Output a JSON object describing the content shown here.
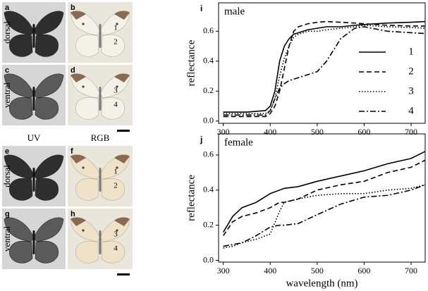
{
  "photo_panels": {
    "column_labels": [
      "UV",
      "RGB"
    ],
    "row_labels": [
      "dorsal",
      "ventral",
      "dorsal",
      "ventral"
    ],
    "panels": [
      {
        "label": "a",
        "mode": "uv",
        "numbers": []
      },
      {
        "label": "b",
        "mode": "rgb",
        "numbers": [
          "1",
          "2"
        ]
      },
      {
        "label": "c",
        "mode": "uv",
        "numbers": []
      },
      {
        "label": "d",
        "mode": "rgb",
        "numbers": [
          "3",
          "4"
        ],
        "scale_bar": true
      },
      {
        "label": "e",
        "mode": "uv",
        "numbers": []
      },
      {
        "label": "f",
        "mode": "rgb",
        "numbers": [
          "1",
          "2"
        ]
      },
      {
        "label": "g",
        "mode": "uv",
        "numbers": []
      },
      {
        "label": "h",
        "mode": "rgb",
        "numbers": [
          "3",
          "4"
        ],
        "scale_bar": true
      }
    ]
  },
  "chart_data": [
    {
      "type": "line",
      "panel_label": "i",
      "annotation": "male",
      "y_label": "reflectance",
      "x": [
        300,
        350,
        390,
        400,
        410,
        420,
        430,
        440,
        450,
        460,
        480,
        500,
        520,
        550,
        580,
        600,
        650,
        700,
        730
      ],
      "series": [
        {
          "name": "1",
          "color": "#000000",
          "line_style": "solid",
          "values": [
            0.06,
            0.06,
            0.07,
            0.1,
            0.2,
            0.4,
            0.5,
            0.55,
            0.58,
            0.59,
            0.61,
            0.62,
            0.63,
            0.63,
            0.64,
            0.645,
            0.655,
            0.66,
            0.665
          ]
        },
        {
          "name": "2",
          "color": "#000000",
          "line_style": "dashed",
          "values": [
            0.03,
            0.03,
            0.03,
            0.05,
            0.1,
            0.2,
            0.35,
            0.5,
            0.6,
            0.63,
            0.65,
            0.66,
            0.665,
            0.66,
            0.655,
            0.65,
            0.64,
            0.635,
            0.635
          ]
        },
        {
          "name": "3",
          "color": "#000000",
          "line_style": "dotted",
          "values": [
            0.05,
            0.05,
            0.05,
            0.07,
            0.15,
            0.3,
            0.42,
            0.5,
            0.56,
            0.58,
            0.6,
            0.6,
            0.61,
            0.62,
            0.63,
            0.64,
            0.63,
            0.625,
            0.62
          ]
        },
        {
          "name": "4",
          "color": "#000000",
          "line_style": "dashdot",
          "values": [
            0.04,
            0.04,
            0.04,
            0.07,
            0.15,
            0.22,
            0.25,
            0.27,
            0.28,
            0.29,
            0.31,
            0.33,
            0.4,
            0.55,
            0.62,
            0.63,
            0.6,
            0.59,
            0.585
          ]
        }
      ],
      "xlim": [
        290,
        730
      ],
      "xticks": [
        300,
        400,
        500,
        600,
        700
      ],
      "ylim": [
        -0.015,
        0.79
      ],
      "yticks": [
        {
          "value": 0,
          "label": "0.0"
        },
        0.2,
        0.4,
        0.6
      ],
      "legend": "right"
    },
    {
      "type": "line",
      "panel_label": "j",
      "annotation": "female",
      "y_label": "reflectance",
      "x_label": "wavelength (nm)",
      "x": [
        300,
        320,
        340,
        370,
        400,
        420,
        430,
        460,
        500,
        550,
        600,
        650,
        700,
        730
      ],
      "series": [
        {
          "color": "#000000",
          "line_style": "solid",
          "values": [
            0.16,
            0.25,
            0.3,
            0.33,
            0.38,
            0.4,
            0.41,
            0.42,
            0.45,
            0.48,
            0.51,
            0.55,
            0.58,
            0.62
          ]
        },
        {
          "color": "#000000",
          "line_style": "dashed",
          "values": [
            0.14,
            0.22,
            0.25,
            0.27,
            0.3,
            0.33,
            0.33,
            0.35,
            0.4,
            0.43,
            0.45,
            0.5,
            0.53,
            0.57
          ]
        },
        {
          "color": "#000000",
          "line_style": "dotted",
          "values": [
            0.07,
            0.08,
            0.1,
            0.12,
            0.15,
            0.28,
            0.33,
            0.35,
            0.37,
            0.38,
            0.38,
            0.4,
            0.41,
            0.43
          ]
        },
        {
          "color": "#000000",
          "line_style": "dashdot",
          "values": [
            0.08,
            0.09,
            0.1,
            0.14,
            0.19,
            0.2,
            0.2,
            0.21,
            0.26,
            0.32,
            0.36,
            0.37,
            0.4,
            0.43
          ]
        }
      ],
      "xlim": [
        290,
        730
      ],
      "xticks": [
        300,
        400,
        500,
        600,
        700
      ],
      "ylim": [
        -0.01,
        0.72
      ],
      "yticks": [
        {
          "value": 0,
          "label": "0.0"
        },
        0.2,
        0.4,
        0.6
      ]
    }
  ]
}
